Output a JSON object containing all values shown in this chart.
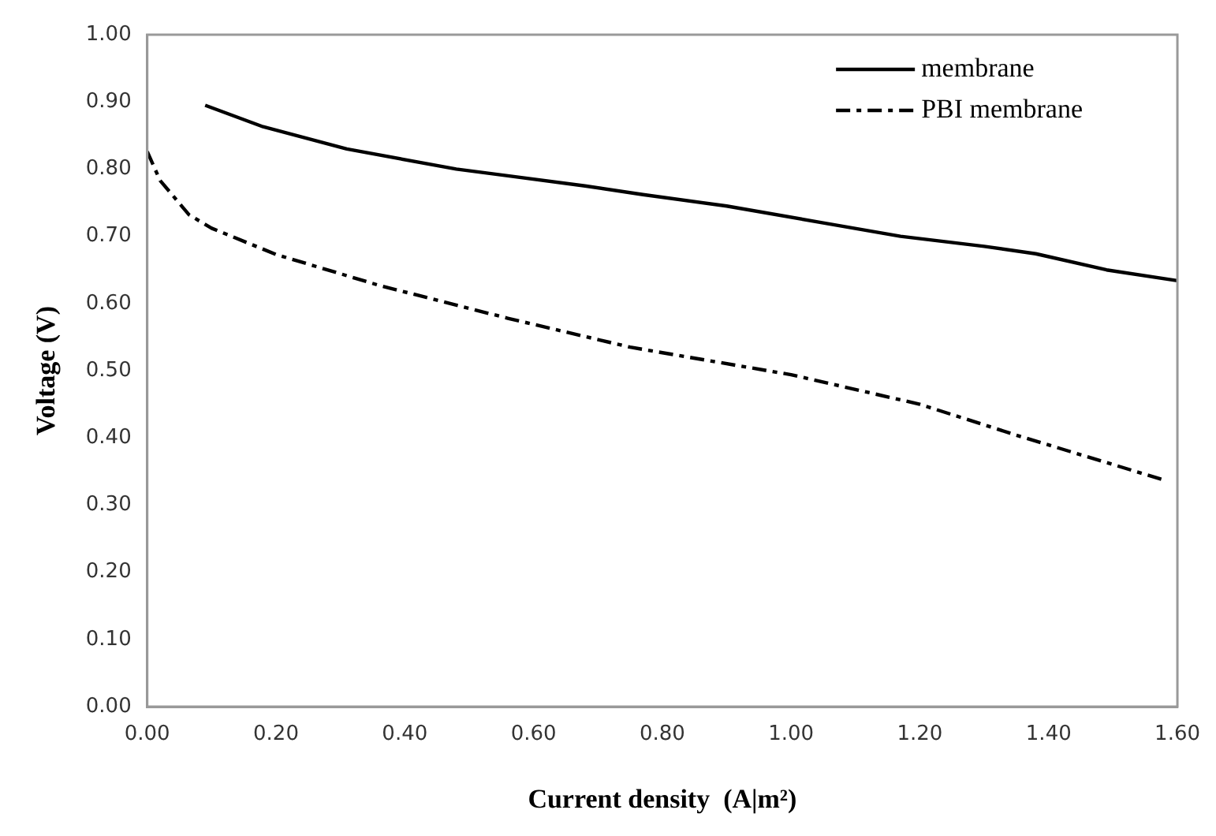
{
  "chart_data": {
    "type": "line",
    "xlabel": "Current density  (A|m²)",
    "ylabel": "Voltage (V)",
    "xlim": [
      0,
      1.6
    ],
    "xticks": [
      {
        "value": 0,
        "label": "0.00"
      },
      {
        "value": 0.2,
        "label": "0.20"
      },
      {
        "value": 0.4,
        "label": "0.40"
      },
      {
        "value": 0.6,
        "label": "0.60"
      },
      {
        "value": 0.8,
        "label": "0.80"
      },
      {
        "value": 1,
        "label": "1.00"
      },
      {
        "value": 1.2,
        "label": "1.20"
      },
      {
        "value": 1.4,
        "label": "1.40"
      },
      {
        "value": 1.6,
        "label": "1.60"
      }
    ],
    "ylim": [
      0,
      1
    ],
    "yticks": [
      {
        "value": 0,
        "label": "0.00"
      },
      {
        "value": 0.1,
        "label": "0.10"
      },
      {
        "value": 0.2,
        "label": "0.20"
      },
      {
        "value": 0.3,
        "label": "0.30"
      },
      {
        "value": 0.4,
        "label": "0.40"
      },
      {
        "value": 0.5,
        "label": "0.50"
      },
      {
        "value": 0.6,
        "label": "0.60"
      },
      {
        "value": 0.7,
        "label": "0.70"
      },
      {
        "value": 0.8,
        "label": "0.80"
      },
      {
        "value": 0.9,
        "label": "0.90"
      },
      {
        "value": 1,
        "label": "1.00"
      }
    ],
    "grid": false,
    "legend": "top right",
    "marker": "none",
    "series": [
      {
        "name": "membrane",
        "color": "#000000",
        "line_style": "solid",
        "x": [
          0.09,
          0.18,
          0.31,
          0.48,
          0.56,
          0.68,
          0.77,
          0.9,
          1.05,
          1.17,
          1.3,
          1.38,
          1.49,
          1.6
        ],
        "values": [
          0.895,
          0.863,
          0.83,
          0.8,
          0.79,
          0.775,
          0.762,
          0.745,
          0.72,
          0.7,
          0.685,
          0.674,
          0.65,
          0.634
        ]
      },
      {
        "name": "PBI membrane",
        "color": "#000000",
        "line_style": "dashed",
        "x": [
          0,
          0.02,
          0.065,
          0.1,
          0.2,
          0.36,
          0.56,
          0.75,
          1.0,
          1.2,
          1.35,
          1.58
        ],
        "values": [
          0.826,
          0.783,
          0.732,
          0.712,
          0.673,
          0.627,
          0.578,
          0.535,
          0.494,
          0.45,
          0.404,
          0.337
        ]
      }
    ]
  }
}
